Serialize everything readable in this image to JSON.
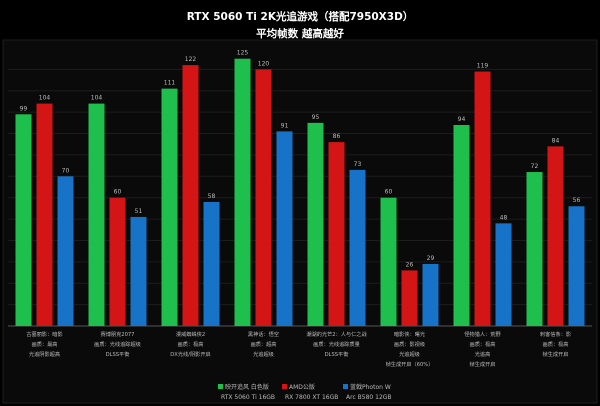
{
  "chart_data": {
    "type": "bar",
    "title": "RTX 5060 Ti 2K光追游戏（搭配7950X3D）",
    "subtitle": "平均帧数 越高越好",
    "ylim": [
      0,
      130
    ],
    "grid": true,
    "legend_position": "bottom",
    "categories": [
      [
        "古墓丽影：暗影",
        "画质：最高",
        "光追阴影超高"
      ],
      [
        "赛博朋克2077",
        "画质：光线追踪超级",
        "DLSS平衡"
      ],
      [
        "漫威蜘蛛侠2",
        "画质：极高",
        "DX光线/阴影开启"
      ],
      [
        "黑神话：悟空",
        "画质：超高",
        "光追超级"
      ],
      [
        "潮湖的光芒2：人与仁之战",
        "画质：光线追踪质量",
        "DLSS平衡"
      ],
      [
        "暗影侠：曙光",
        "画质：影视级",
        "光追超级",
        "帧生成开启（60%）"
      ],
      [
        "怪物猎人：荒野",
        "画质：极高",
        "光追高",
        "帧生成开启"
      ],
      [
        "刺客信条：影",
        "画质：极高",
        "帧生成开启"
      ]
    ],
    "series": [
      {
        "name": "映开追风 白色版",
        "sublabel": "RTX 5060 Ti 16GB",
        "color": "#1fbf4d",
        "values": [
          99,
          104,
          111,
          125,
          95,
          60,
          94,
          72
        ]
      },
      {
        "name": "AMD公版",
        "sublabel": "RX 7800 XT 16GB",
        "color": "#d41515",
        "values": [
          104,
          60,
          122,
          120,
          86,
          26,
          119,
          84
        ]
      },
      {
        "name": "蓝戟Photon W",
        "sublabel": "Arc B580 12GB",
        "color": "#1673c8",
        "values": [
          70,
          51,
          58,
          91,
          73,
          29,
          48,
          56
        ]
      }
    ]
  }
}
